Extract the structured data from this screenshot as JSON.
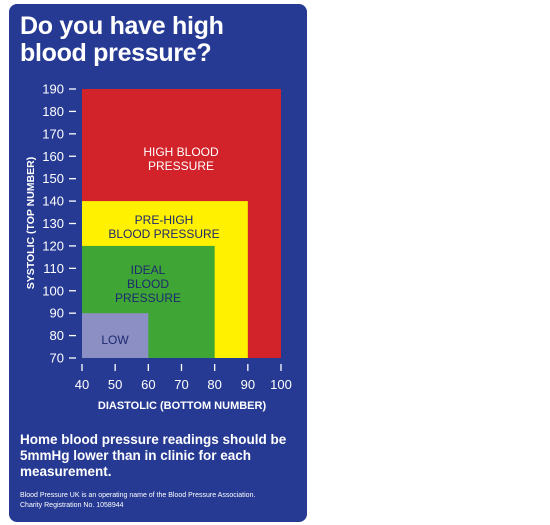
{
  "title": "Do you have high blood pressure?",
  "note": "Home blood pressure readings should be 5mmHg lower than in clinic for each measurement.",
  "footer": {
    "line1": "Blood Pressure UK is an operating name of the Blood Pressure Association.",
    "line2": "Charity Registration No. 1058944"
  },
  "colors": {
    "background": "#263a94",
    "high": "#d2232a",
    "pre_high": "#fff100",
    "ideal": "#3fa535",
    "low": "#8c8fc4"
  },
  "chart_data": {
    "type": "area",
    "xlabel": "DIASTOLIC (BOTTOM NUMBER)",
    "ylabel": "SYSTOLIC (TOP NUMBER)",
    "xlim": [
      40,
      100
    ],
    "ylim": [
      70,
      190
    ],
    "x_ticks": [
      40,
      50,
      60,
      70,
      80,
      90,
      100
    ],
    "y_ticks": [
      70,
      80,
      90,
      100,
      110,
      120,
      130,
      140,
      150,
      160,
      170,
      180,
      190
    ],
    "grid": false,
    "regions": [
      {
        "label": [
          "HIGH BLOOD",
          "PRESSURE"
        ],
        "x": [
          40,
          100
        ],
        "y": [
          70,
          190
        ],
        "color": "#d2232a",
        "text_color": "#ffffff"
      },
      {
        "label": [
          "PRE-HIGH",
          "BLOOD PRESSURE"
        ],
        "x": [
          40,
          90
        ],
        "y": [
          70,
          140
        ],
        "color": "#fff100",
        "text_color": "#1d2a6e"
      },
      {
        "label": [
          "IDEAL",
          "BLOOD",
          "PRESSURE"
        ],
        "x": [
          40,
          80
        ],
        "y": [
          70,
          120
        ],
        "color": "#3fa535",
        "text_color": "#1d2a6e"
      },
      {
        "label": [
          "LOW"
        ],
        "x": [
          40,
          60
        ],
        "y": [
          70,
          90
        ],
        "color": "#8c8fc4",
        "text_color": "#1d2a6e"
      }
    ]
  }
}
